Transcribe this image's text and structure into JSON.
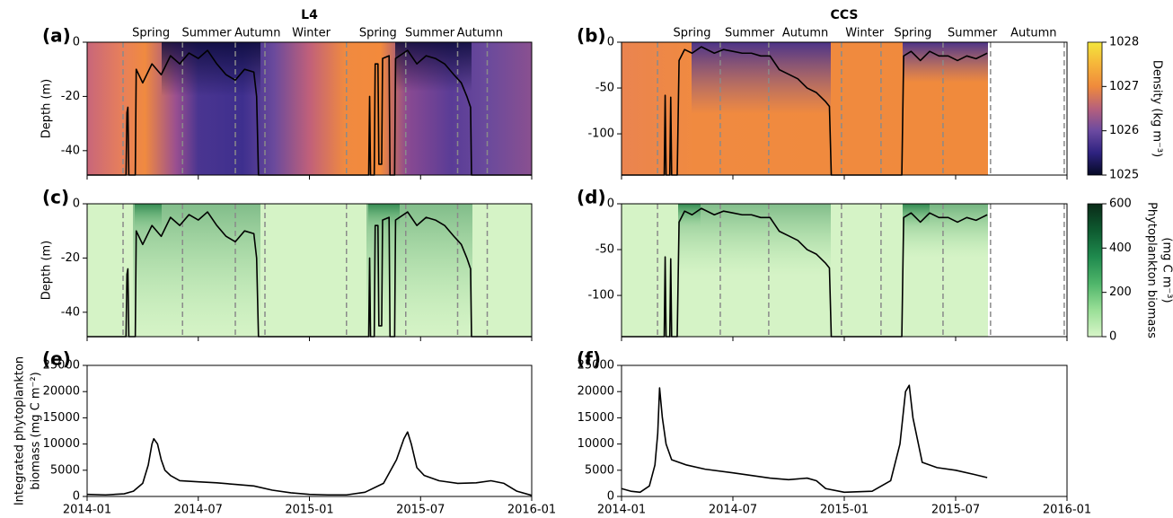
{
  "chart_data": [
    {
      "type": "heatmap",
      "panel_label": "(a)",
      "title": "L4",
      "ylabel": "Depth (m)",
      "xlim": [
        0,
        24
      ],
      "xticks": [
        0,
        6,
        12,
        18,
        24
      ],
      "xtick_labels": false,
      "ylim": [
        -49,
        0
      ],
      "yticks": [
        0,
        -20,
        -40
      ],
      "seasons": [
        {
          "label": "Spring",
          "x": 3.45
        },
        {
          "label": "Summer",
          "x": 6.45
        },
        {
          "label": "Autumn",
          "x": 9.2
        },
        {
          "label": "Winter",
          "x": 12.1
        },
        {
          "label": "Spring",
          "x": 15.7
        },
        {
          "label": "Summer",
          "x": 18.5
        },
        {
          "label": "Autumn",
          "x": 21.2
        }
      ],
      "season_bounds": [
        1.94,
        5.15,
        8.0,
        9.6,
        14.0,
        17.2,
        20.0,
        21.6
      ],
      "series": [
        {
          "color": "#000000",
          "x": [
            0,
            2.1,
            2.15,
            2.2,
            2.25,
            2.6,
            2.65,
            3,
            3.5,
            4,
            4.5,
            5,
            5.5,
            6,
            6.5,
            7,
            7.5,
            8,
            8.5,
            9,
            9.15,
            9.25,
            15.2,
            15.25,
            15.3,
            15.5,
            15.55,
            15.7,
            15.75,
            15.9,
            15.95,
            16.3,
            16.35,
            16.6,
            16.65,
            17.3,
            17.8,
            18.3,
            18.8,
            19.3,
            19.8,
            20.2,
            20.5,
            20.7,
            20.75,
            24
          ],
          "values": [
            -49,
            -49,
            -26,
            -24,
            -49,
            -49,
            -10,
            -15,
            -8,
            -12,
            -5,
            -8,
            -4,
            -6,
            -3,
            -8,
            -12,
            -14,
            -10,
            -11,
            -20,
            -49,
            -49,
            -20,
            -49,
            -49,
            -8,
            -8,
            -45,
            -45,
            -6,
            -5,
            -49,
            -49,
            -6,
            -3,
            -8,
            -5,
            -6,
            -8,
            -12,
            -15,
            -20,
            -24,
            -49,
            -49
          ]
        }
      ],
      "colorbar": {
        "label": "Density (kg m⁻³)",
        "lim": [
          1025,
          1028
        ],
        "ticks": [
          1025,
          1026,
          1027,
          1028
        ],
        "colors": [
          "#050a24",
          "#2e2280",
          "#6b4aa0",
          "#b6607c",
          "#ef8a3c",
          "#f6b53a",
          "#f3e63c"
        ]
      }
    },
    {
      "type": "heatmap",
      "panel_label": "(b)",
      "title": "CCS",
      "xlim": [
        0,
        24
      ],
      "xticks": [
        0,
        6,
        12,
        18,
        24
      ],
      "xtick_labels": false,
      "ylim": [
        -145,
        0
      ],
      "yticks": [
        0,
        -50,
        -100
      ],
      "seasons": [
        {
          "label": "Spring",
          "x": 3.8
        },
        {
          "label": "Summer",
          "x": 6.9
        },
        {
          "label": "Autumn",
          "x": 9.9
        },
        {
          "label": "Winter",
          "x": 13.1
        },
        {
          "label": "Spring",
          "x": 15.7
        },
        {
          "label": "Summer",
          "x": 18.9
        },
        {
          "label": "Autumn",
          "x": 22.2
        }
      ],
      "season_bounds": [
        1.94,
        5.32,
        7.93,
        11.85,
        13.98,
        17.32,
        19.88,
        23.85
      ],
      "series": [
        {
          "color": "#000000",
          "x": [
            0,
            2.3,
            2.35,
            2.4,
            2.6,
            2.65,
            2.7,
            3.0,
            3.1,
            3.4,
            3.8,
            4.3,
            5,
            5.5,
            6,
            6.5,
            7,
            7.5,
            8,
            8.5,
            9,
            9.5,
            10,
            10.5,
            11,
            11.2,
            11.3,
            15.1,
            15.2,
            15.6,
            16.1,
            16.6,
            17.1,
            17.6,
            18.1,
            18.6,
            19.1,
            19.4,
            19.7
          ],
          "values": [
            -145,
            -145,
            -58,
            -145,
            -145,
            -60,
            -145,
            -145,
            -20,
            -8,
            -12,
            -5,
            -12,
            -8,
            -10,
            -12,
            -12,
            -15,
            -15,
            -30,
            -35,
            -40,
            -50,
            -55,
            -65,
            -70,
            -145,
            -145,
            -15,
            -10,
            -20,
            -10,
            -15,
            -15,
            -20,
            -15,
            -18,
            -15,
            -12
          ]
        }
      ]
    },
    {
      "type": "heatmap",
      "panel_label": "(c)",
      "ylabel": "Depth (m)",
      "xlim": [
        0,
        24
      ],
      "xticks": [
        0,
        6,
        12,
        18,
        24
      ],
      "xtick_labels": false,
      "ylim": [
        -49,
        0
      ],
      "yticks": [
        0,
        -20,
        -40
      ],
      "season_bounds": [
        1.94,
        5.15,
        8.0,
        9.6,
        14.0,
        17.2,
        20.0,
        21.6
      ],
      "series": [
        {
          "color": "#000000",
          "x": [
            0,
            2.1,
            2.15,
            2.2,
            2.25,
            2.6,
            2.65,
            3,
            3.5,
            4,
            4.5,
            5,
            5.5,
            6,
            6.5,
            7,
            7.5,
            8,
            8.5,
            9,
            9.15,
            9.25,
            15.2,
            15.25,
            15.3,
            15.5,
            15.55,
            15.7,
            15.75,
            15.9,
            15.95,
            16.3,
            16.35,
            16.6,
            16.65,
            17.3,
            17.8,
            18.3,
            18.8,
            19.3,
            19.8,
            20.2,
            20.5,
            20.7,
            20.75,
            24
          ],
          "values": [
            -49,
            -49,
            -26,
            -24,
            -49,
            -49,
            -10,
            -15,
            -8,
            -12,
            -5,
            -8,
            -4,
            -6,
            -3,
            -8,
            -12,
            -14,
            -10,
            -11,
            -20,
            -49,
            -49,
            -20,
            -49,
            -49,
            -8,
            -8,
            -45,
            -45,
            -6,
            -5,
            -49,
            -49,
            -6,
            -3,
            -8,
            -5,
            -6,
            -8,
            -12,
            -15,
            -20,
            -24,
            -49,
            -49
          ]
        }
      ],
      "colorbar": {
        "label": [
          "Phytoplankton biomass",
          "(mg C m⁻³)"
        ],
        "lim": [
          0,
          600
        ],
        "ticks": [
          0,
          200,
          400,
          600
        ],
        "colors": [
          "#d7f5c8",
          "#9adf97",
          "#4fb56a",
          "#1f8a4e",
          "#0e5a30",
          "#0a2b18"
        ]
      }
    },
    {
      "type": "heatmap",
      "panel_label": "(d)",
      "xlim": [
        0,
        24
      ],
      "xticks": [
        0,
        6,
        12,
        18,
        24
      ],
      "xtick_labels": false,
      "ylim": [
        -145,
        0
      ],
      "yticks": [
        0,
        -50,
        -100
      ],
      "season_bounds": [
        1.94,
        5.32,
        7.93,
        11.85,
        13.98,
        17.32,
        19.88,
        23.85
      ],
      "series": [
        {
          "color": "#000000",
          "x": [
            0,
            2.3,
            2.35,
            2.4,
            2.6,
            2.65,
            2.7,
            3.0,
            3.1,
            3.4,
            3.8,
            4.3,
            5,
            5.5,
            6,
            6.5,
            7,
            7.5,
            8,
            8.5,
            9,
            9.5,
            10,
            10.5,
            11,
            11.2,
            11.3,
            15.1,
            15.2,
            15.6,
            16.1,
            16.6,
            17.1,
            17.6,
            18.1,
            18.6,
            19.1,
            19.4,
            19.7
          ],
          "values": [
            -145,
            -145,
            -58,
            -145,
            -145,
            -60,
            -145,
            -145,
            -20,
            -8,
            -12,
            -5,
            -12,
            -8,
            -10,
            -12,
            -12,
            -15,
            -15,
            -30,
            -35,
            -40,
            -50,
            -55,
            -65,
            -70,
            -145,
            -145,
            -15,
            -10,
            -20,
            -10,
            -15,
            -15,
            -20,
            -15,
            -18,
            -15,
            -12
          ]
        }
      ]
    },
    {
      "type": "line",
      "panel_label": "(e)",
      "ylabel": [
        "Integrated phytoplankton",
        "biomass (mg C m⁻²)"
      ],
      "xlim": [
        0,
        24
      ],
      "xticks": [
        {
          "value": 0,
          "label": "2014-01"
        },
        {
          "value": 6,
          "label": "2014-07"
        },
        {
          "value": 12,
          "label": "2015-01"
        },
        {
          "value": 18,
          "label": "2015-07"
        },
        {
          "value": 24,
          "label": "2016-01"
        }
      ],
      "ylim": [
        0,
        25000
      ],
      "yticks": [
        0,
        5000,
        10000,
        15000,
        20000,
        25000
      ],
      "series": [
        {
          "color": "#000000",
          "x": [
            0,
            1,
            2,
            2.5,
            3,
            3.3,
            3.5,
            3.6,
            3.8,
            4,
            4.2,
            4.5,
            5,
            6,
            7,
            8,
            9,
            10,
            11,
            12,
            13,
            14,
            15,
            16,
            16.7,
            17.1,
            17.3,
            17.5,
            17.8,
            18.2,
            19,
            20,
            21,
            21.8,
            22.5,
            23.2,
            24
          ],
          "values": [
            400,
            300,
            500,
            1000,
            2500,
            6000,
            10000,
            11000,
            10000,
            7000,
            5000,
            4000,
            3000,
            2800,
            2600,
            2300,
            2000,
            1200,
            700,
            400,
            300,
            300,
            800,
            2500,
            7000,
            11000,
            12300,
            10000,
            5500,
            4000,
            3000,
            2500,
            2600,
            3000,
            2500,
            1000,
            200
          ]
        }
      ]
    },
    {
      "type": "line",
      "panel_label": "(f)",
      "xlim": [
        0,
        24
      ],
      "xticks": [
        {
          "value": 0,
          "label": "2014-01"
        },
        {
          "value": 6,
          "label": "2014-07"
        },
        {
          "value": 12,
          "label": "2015-01"
        },
        {
          "value": 18,
          "label": "2015-07"
        },
        {
          "value": 24,
          "label": "2016-01"
        }
      ],
      "ylim": [
        0,
        25000
      ],
      "yticks": [
        0,
        5000,
        10000,
        15000,
        20000,
        25000
      ],
      "series": [
        {
          "color": "#000000",
          "x": [
            0,
            0.5,
            1,
            1.5,
            1.8,
            1.95,
            2.05,
            2.2,
            2.4,
            2.7,
            3.5,
            4.5,
            6,
            8,
            9,
            10,
            10.5,
            11,
            12,
            13.5,
            14.5,
            15,
            15.3,
            15.5,
            15.7,
            16.2,
            17,
            18,
            19,
            19.7
          ],
          "values": [
            1500,
            1000,
            800,
            2000,
            6000,
            12000,
            20700,
            15000,
            10000,
            7000,
            6000,
            5200,
            4500,
            3500,
            3200,
            3500,
            3000,
            1500,
            800,
            1000,
            3000,
            10000,
            20000,
            21200,
            15000,
            6500,
            5500,
            5000,
            4200,
            3600
          ]
        }
      ]
    }
  ]
}
